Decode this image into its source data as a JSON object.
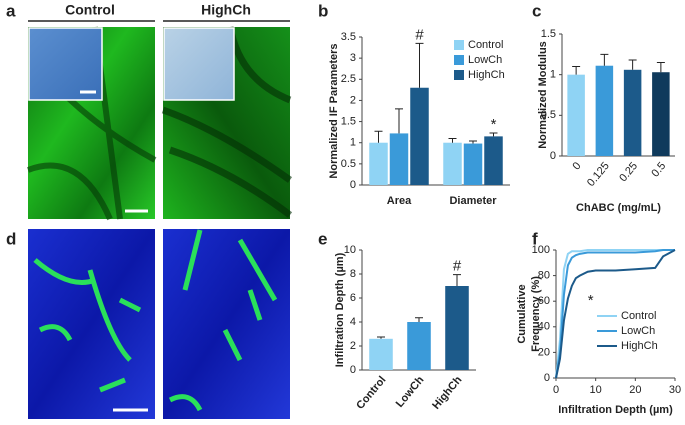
{
  "images": {
    "label": "a",
    "titles": [
      "Control",
      "HighCh"
    ]
  },
  "images2": {
    "label": "d"
  },
  "chart_data": [
    {
      "type": "bar",
      "label": "b",
      "ylabel": "Normalized IF Parameters",
      "categories": [
        "Area",
        "Diameter"
      ],
      "series": [
        {
          "name": "Control",
          "color": "#8fd3f4",
          "values": [
            1,
            1
          ],
          "errors": [
            0.27,
            0.1
          ]
        },
        {
          "name": "LowCh",
          "color": "#3a9ad9",
          "values": [
            1.22,
            0.98
          ],
          "errors": [
            0.58,
            0.06
          ]
        },
        {
          "name": "HighCh",
          "color": "#1c5a8a",
          "values": [
            2.3,
            1.15
          ],
          "errors": [
            1.05,
            0.08
          ]
        }
      ],
      "annotations": [
        "#",
        "*"
      ],
      "ylim": [
        0,
        3.5
      ],
      "yticks": [
        0,
        0.5,
        1,
        1.5,
        2,
        2.5,
        3,
        3.5
      ],
      "legend": "upper right"
    },
    {
      "type": "bar",
      "label": "c",
      "ylabel": "Normalized Modulus",
      "xlabel": "ChABC (mg/mL)",
      "categories": [
        "0",
        "0.125",
        "0.25",
        "0.5"
      ],
      "values": [
        1,
        1.11,
        1.06,
        1.03
      ],
      "errors": [
        0.1,
        0.14,
        0.12,
        0.12
      ],
      "colors": [
        "#8fd3f4",
        "#3a9ad9",
        "#1c5a8a",
        "#0f3a5c"
      ],
      "ylim": [
        0,
        1.5
      ],
      "yticks": [
        0,
        0.5,
        1,
        1.5
      ]
    },
    {
      "type": "bar",
      "label": "e",
      "ylabel": "Infiltration Depth (µm)",
      "categories": [
        "Control",
        "LowCh",
        "HighCh"
      ],
      "values": [
        2.6,
        4.0,
        7.0
      ],
      "errors": [
        0.15,
        0.35,
        0.95
      ],
      "colors": [
        "#8fd3f4",
        "#3a9ad9",
        "#1c5a8a"
      ],
      "annotations": [
        "#"
      ],
      "ylim": [
        0,
        10
      ],
      "yticks": [
        0,
        2,
        4,
        6,
        8,
        10
      ]
    },
    {
      "type": "line",
      "label": "f",
      "ylabel": [
        "Cumulative",
        "Frequency (%)"
      ],
      "xlabel": "Infiltration Depth (µm)",
      "x": [
        0,
        1,
        2,
        3,
        4,
        5,
        6,
        8,
        10,
        15,
        20,
        25,
        27,
        30
      ],
      "series": [
        {
          "name": "Control",
          "color": "#8fd3f4",
          "values": [
            0,
            30,
            85,
            97,
            99,
            99,
            99,
            100,
            100,
            100,
            100,
            100,
            100,
            100
          ]
        },
        {
          "name": "LowCh",
          "color": "#3a9ad9",
          "values": [
            0,
            20,
            65,
            88,
            94,
            96,
            97,
            98,
            98,
            98,
            98,
            99,
            100,
            100
          ]
        },
        {
          "name": "HighCh",
          "color": "#1c5a8a",
          "values": [
            0,
            15,
            45,
            62,
            72,
            78,
            80,
            83,
            84,
            84,
            85,
            86,
            95,
            100
          ]
        }
      ],
      "annotations": [
        "*"
      ],
      "xlim": [
        0,
        30
      ],
      "xticks": [
        0,
        10,
        20,
        30
      ],
      "ylim": [
        0,
        100
      ],
      "yticks": [
        0,
        20,
        40,
        60,
        80,
        100
      ],
      "legend": "lower right"
    }
  ]
}
